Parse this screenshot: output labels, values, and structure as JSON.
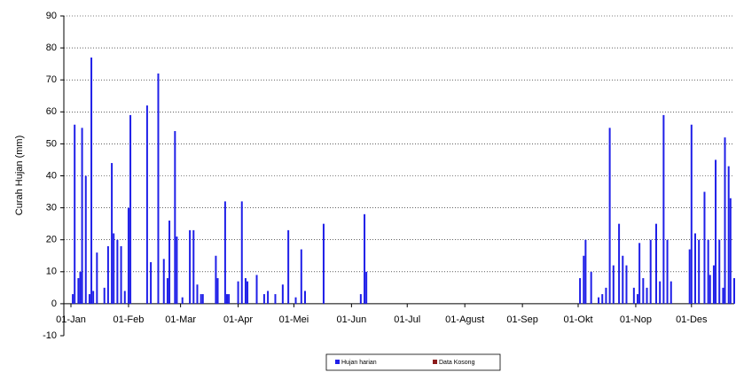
{
  "chart_data": {
    "type": "bar",
    "y_label": "Curah Hujan (mm)",
    "xlim": [
      1,
      358
    ],
    "xticks": [
      {
        "value": 1,
        "label": "01-Jan"
      },
      {
        "value": 32,
        "label": "01-Feb"
      },
      {
        "value": 60,
        "label": "01-Mar"
      },
      {
        "value": 91,
        "label": "01-Apr"
      },
      {
        "value": 121,
        "label": "01-Mei"
      },
      {
        "value": 152,
        "label": "01-Jun"
      },
      {
        "value": 182,
        "label": "01-Jul"
      },
      {
        "value": 213,
        "label": "01-Agust"
      },
      {
        "value": 244,
        "label": "01-Sep"
      },
      {
        "value": 274,
        "label": "01-Okt"
      },
      {
        "value": 305,
        "label": "01-Nop"
      },
      {
        "value": 335,
        "label": "01-Des"
      }
    ],
    "ylim": [
      -10,
      90
    ],
    "yticks": [
      -10,
      0,
      10,
      20,
      30,
      40,
      50,
      60,
      70,
      80,
      90
    ],
    "grid": true,
    "series": [
      {
        "name": "Hujan harian",
        "color": "#1f1fe8",
        "x": [
          2,
          3,
          5,
          6,
          7,
          9,
          11,
          12,
          13,
          15,
          19,
          21,
          23,
          24,
          26,
          28,
          30,
          32,
          33,
          42,
          44,
          48,
          51,
          53,
          54,
          57,
          58,
          61,
          65,
          67,
          69,
          71,
          72,
          79,
          80,
          84,
          85,
          86,
          91,
          93,
          95,
          96,
          101,
          105,
          107,
          111,
          115,
          118,
          122,
          125,
          127,
          137,
          157,
          159,
          160,
          275,
          277,
          278,
          281,
          285,
          287,
          289,
          291,
          293,
          296,
          298,
          300,
          304,
          306,
          307,
          309,
          311,
          313,
          316,
          318,
          320,
          322,
          324,
          334,
          335,
          337,
          339,
          342,
          344,
          345,
          347,
          348,
          350,
          352,
          353,
          355,
          356,
          358
        ],
        "values": [
          3,
          56,
          8,
          10,
          55,
          40,
          3,
          77,
          4,
          16,
          5,
          18,
          44,
          22,
          20,
          18,
          4,
          30,
          59,
          62,
          13,
          72,
          14,
          8,
          26,
          54,
          21,
          2,
          23,
          23,
          6,
          3,
          3,
          15,
          8,
          32,
          3,
          3,
          7,
          32,
          8,
          7,
          9,
          3,
          4,
          3,
          6,
          23,
          2,
          17,
          4,
          25,
          3,
          28,
          10,
          8,
          15,
          20,
          10,
          2,
          3,
          5,
          55,
          12,
          25,
          15,
          12,
          5,
          3,
          19,
          8,
          5,
          20,
          25,
          7,
          59,
          20,
          7,
          17,
          56,
          22,
          20,
          35,
          20,
          9,
          12,
          45,
          20,
          5,
          52,
          43,
          33,
          8
        ]
      },
      {
        "name": "Data Kosong",
        "color": "#8b1a1a",
        "x": [],
        "values": []
      }
    ]
  }
}
